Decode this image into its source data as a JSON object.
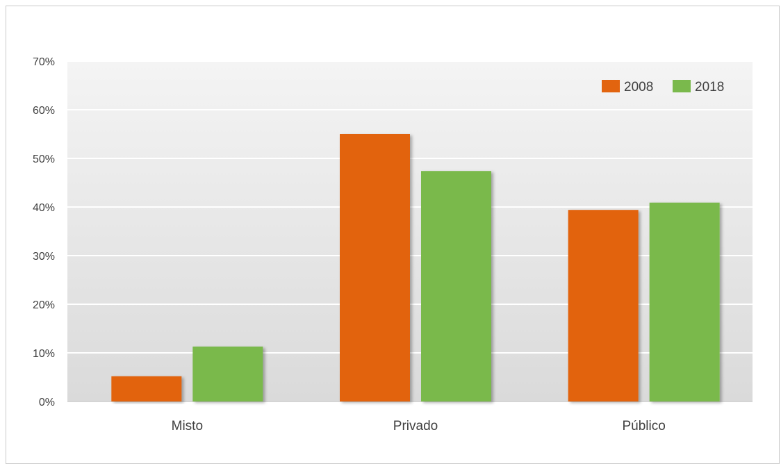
{
  "chart_data": {
    "type": "bar",
    "categories": [
      "Misto",
      "Privado",
      "Público"
    ],
    "series": [
      {
        "name": "2008",
        "values": [
          5.2,
          55.0,
          39.4
        ],
        "color": "#E2640F"
      },
      {
        "name": "2018",
        "values": [
          11.3,
          47.4,
          40.9
        ],
        "color": "#7AB94C"
      }
    ],
    "yticks": [
      "0%",
      "10%",
      "20%",
      "30%",
      "40%",
      "50%",
      "60%",
      "70%"
    ],
    "ylim": [
      0,
      70
    ],
    "grid": true,
    "legend_position": "top-right"
  }
}
